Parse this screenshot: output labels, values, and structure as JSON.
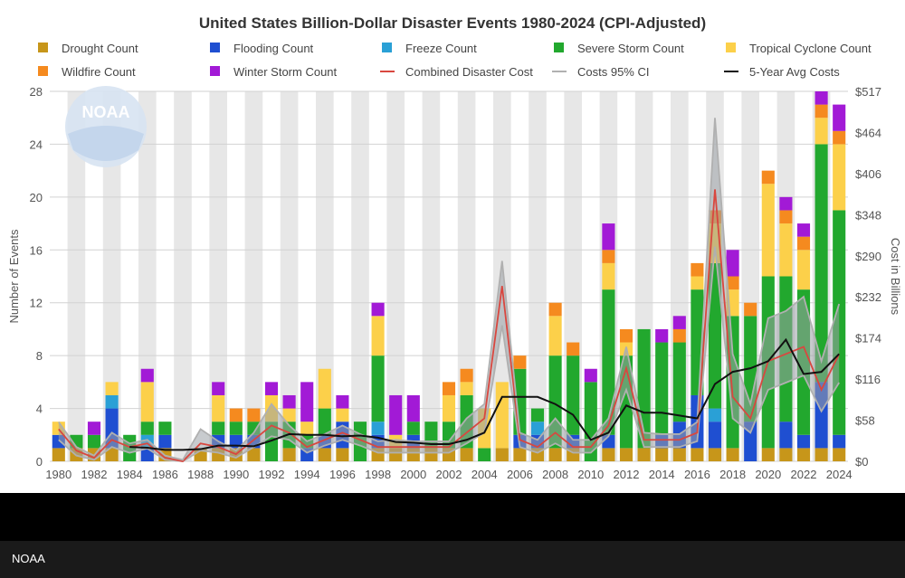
{
  "credit": "NOAA",
  "chart_data": {
    "type": "bar",
    "stacked": true,
    "title": "United States Billion-Dollar Disaster Events 1980-2024 (CPI-Adjusted)",
    "ylabel": "Number of Events",
    "y2label": "Cost in Billions",
    "ylim": [
      0,
      28
    ],
    "yticks": [
      0,
      4,
      8,
      12,
      16,
      20,
      24,
      28
    ],
    "y2lim": [
      0,
      517
    ],
    "y2ticks": [
      "$0",
      "$58",
      "$116",
      "$174",
      "$232",
      "$290",
      "$348",
      "$406",
      "$464",
      "$517"
    ],
    "xticks": [
      "1980",
      "1982",
      "1984",
      "1986",
      "1988",
      "1990",
      "1992",
      "1994",
      "1996",
      "1998",
      "2000",
      "2002",
      "2004",
      "2006",
      "2008",
      "2010",
      "2012",
      "2014",
      "2016",
      "2018",
      "2020",
      "2022",
      "2024"
    ],
    "legend_position": "top",
    "grid": true,
    "watermark": "NOAA",
    "years": [
      1980,
      1981,
      1982,
      1983,
      1984,
      1985,
      1986,
      1987,
      1988,
      1989,
      1990,
      1991,
      1992,
      1993,
      1994,
      1995,
      1996,
      1997,
      1998,
      1999,
      2000,
      2001,
      2002,
      2003,
      2004,
      2005,
      2006,
      2007,
      2008,
      2009,
      2010,
      2011,
      2012,
      2013,
      2014,
      2015,
      2016,
      2017,
      2018,
      2019,
      2020,
      2021,
      2022,
      2023,
      2024
    ],
    "series": [
      {
        "name": "Drought Count",
        "color": "#c7961a",
        "values": [
          1,
          1,
          1,
          1,
          0,
          0,
          1,
          0,
          1,
          1,
          1,
          1,
          0,
          1,
          0,
          1,
          1,
          0,
          1,
          1,
          1,
          1,
          1,
          1,
          0,
          1,
          1,
          1,
          1,
          1,
          0,
          1,
          1,
          1,
          1,
          1,
          1,
          1,
          1,
          0,
          1,
          1,
          1,
          1,
          1
        ]
      },
      {
        "name": "Flooding Count",
        "color": "#1f4fd1",
        "values": [
          1,
          0,
          0,
          3,
          0,
          1,
          1,
          0,
          0,
          1,
          1,
          1,
          0,
          0,
          1,
          1,
          2,
          0,
          1,
          0,
          1,
          0,
          0,
          0,
          0,
          0,
          1,
          1,
          0,
          1,
          0,
          1,
          0,
          0,
          1,
          2,
          4,
          2,
          0,
          3,
          0,
          2,
          1,
          5,
          1
        ]
      },
      {
        "name": "Freeze Count",
        "color": "#2aa0d6",
        "values": [
          0,
          0,
          0,
          1,
          0,
          1,
          0,
          0,
          0,
          0,
          0,
          0,
          0,
          0,
          0,
          0,
          0,
          0,
          1,
          0,
          0,
          0,
          0,
          0,
          0,
          0,
          0,
          1,
          0,
          0,
          0,
          0,
          0,
          0,
          0,
          0,
          0,
          1,
          0,
          0,
          0,
          0,
          0,
          0,
          0
        ]
      },
      {
        "name": "Severe Storm Count",
        "color": "#22a82e",
        "values": [
          0,
          1,
          1,
          0,
          2,
          1,
          1,
          0,
          0,
          1,
          1,
          1,
          3,
          2,
          1,
          2,
          0,
          3,
          5,
          0,
          1,
          2,
          2,
          4,
          1,
          0,
          5,
          1,
          7,
          6,
          6,
          11,
          7,
          9,
          7,
          6,
          8,
          11,
          10,
          8,
          13,
          11,
          11,
          18,
          17
        ]
      },
      {
        "name": "Tropical Cyclone Count",
        "color": "#fcd04a",
        "values": [
          1,
          0,
          0,
          1,
          0,
          3,
          0,
          0,
          0,
          2,
          0,
          0,
          2,
          1,
          1,
          3,
          1,
          0,
          3,
          1,
          0,
          0,
          2,
          1,
          3,
          5,
          0,
          0,
          3,
          0,
          0,
          2,
          1,
          0,
          0,
          0,
          1,
          3,
          2,
          0,
          7,
          4,
          3,
          2,
          5
        ]
      },
      {
        "name": "Wildfire Count",
        "color": "#f58a1f",
        "values": [
          0,
          0,
          0,
          0,
          0,
          0,
          0,
          0,
          0,
          0,
          1,
          1,
          0,
          0,
          0,
          0,
          0,
          0,
          0,
          0,
          0,
          0,
          1,
          1,
          0,
          0,
          1,
          0,
          1,
          1,
          0,
          1,
          1,
          0,
          0,
          1,
          1,
          1,
          1,
          1,
          1,
          1,
          1,
          1,
          1
        ]
      },
      {
        "name": "Winter Storm Count",
        "color": "#a21ad6",
        "values": [
          0,
          0,
          1,
          0,
          0,
          1,
          0,
          0,
          0,
          1,
          0,
          0,
          1,
          1,
          3,
          0,
          1,
          0,
          1,
          3,
          2,
          0,
          0,
          0,
          0,
          0,
          0,
          0,
          0,
          0,
          1,
          2,
          0,
          0,
          1,
          1,
          0,
          0,
          2,
          0,
          0,
          1,
          1,
          1,
          2
        ]
      }
    ],
    "lines": [
      {
        "name": "Combined Disaster Cost",
        "color": "#d9473f",
        "values": [
          45,
          15,
          5,
          30,
          20,
          25,
          5,
          0,
          25,
          20,
          10,
          30,
          50,
          40,
          20,
          30,
          40,
          30,
          20,
          20,
          20,
          20,
          20,
          40,
          60,
          245,
          30,
          20,
          40,
          20,
          20,
          50,
          130,
          30,
          30,
          30,
          40,
          380,
          90,
          60,
          140,
          150,
          160,
          100,
          150
        ]
      },
      {
        "name": "Costs 95% CI",
        "color": "#b0b0b0",
        "values": [
          55,
          20,
          8,
          40,
          25,
          30,
          8,
          2,
          45,
          28,
          15,
          40,
          80,
          50,
          28,
          38,
          50,
          38,
          28,
          30,
          28,
          28,
          28,
          60,
          80,
          280,
          40,
          30,
          60,
          30,
          30,
          60,
          160,
          40,
          38,
          38,
          55,
          480,
          150,
          80,
          200,
          210,
          230,
          140,
          220
        ],
        "band_low": [
          30,
          8,
          2,
          20,
          12,
          18,
          2,
          0,
          15,
          12,
          5,
          20,
          35,
          30,
          12,
          22,
          30,
          22,
          12,
          12,
          12,
          12,
          12,
          25,
          40,
          190,
          20,
          12,
          25,
          12,
          12,
          35,
          100,
          20,
          20,
          20,
          28,
          300,
          60,
          40,
          100,
          110,
          120,
          70,
          110
        ]
      },
      {
        "name": "5-Year Avg Costs",
        "color": "#111111",
        "values": [
          null,
          null,
          null,
          null,
          20,
          19,
          16,
          16,
          17,
          22,
          22,
          21,
          29,
          38,
          37,
          37,
          35,
          36,
          33,
          27,
          26,
          24,
          24,
          30,
          40,
          90,
          90,
          90,
          80,
          65,
          30,
          40,
          78,
          68,
          68,
          64,
          60,
          108,
          125,
          130,
          140,
          170,
          122,
          125,
          150
        ]
      }
    ]
  }
}
